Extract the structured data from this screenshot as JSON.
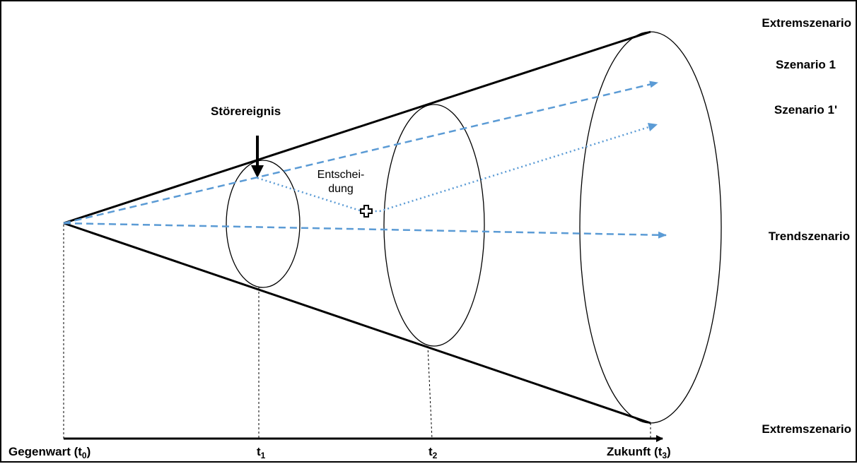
{
  "labels": {
    "extreme_top": "Extremszenario",
    "scenario_1": "Szenario 1",
    "scenario_1_prime": "Szenario 1'",
    "trend": "Trendszenario",
    "extreme_bottom": "Extremszenario",
    "disruption": "Störereignis",
    "decision_line1": "Entschei-",
    "decision_line2": "dung"
  },
  "axis": {
    "t0_prefix": "Gegenwart (t",
    "t0_sub": "0",
    "t0_suffix": ")",
    "t1_main": "t",
    "t1_sub": "1",
    "t2_main": "t",
    "t2_sub": "2",
    "t3_prefix": "Zukunft (t",
    "t3_sub": "3",
    "t3_suffix": ")"
  },
  "colors": {
    "scenario_arrow": "#5b9bd5",
    "outline": "#000000"
  },
  "icons": {
    "decision_marker": "cross-icon"
  }
}
